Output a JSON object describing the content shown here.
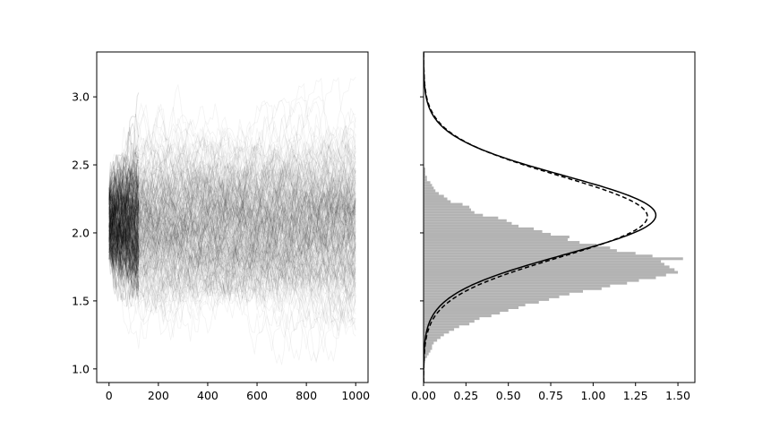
{
  "chart_data": [
    {
      "type": "line",
      "description_of_marks": "many semi-transparent sample paths spreading from x=0",
      "series_color": "#000000",
      "xlim": [
        -50,
        1050
      ],
      "ylim": [
        0.9,
        3.33
      ],
      "xticks": [
        0,
        200,
        400,
        600,
        800,
        1000
      ],
      "xtick_labels": [
        "0",
        "200",
        "400",
        "600",
        "800",
        "1000"
      ],
      "yticks": [
        1.0,
        1.5,
        2.0,
        2.5,
        3.0
      ],
      "ytick_labels": [
        "1.0",
        "1.5",
        "2.0",
        "2.5",
        "3.0"
      ],
      "paths": {
        "x_max": 1000,
        "stationary_mean": 2.05,
        "stationary_sd": 0.3,
        "start_range": [
          1.85,
          2.3
        ]
      }
    },
    {
      "type": "histogram",
      "orientation": "horizontal",
      "bar_color": "#b3b3b3",
      "xlim": [
        0.0,
        1.6
      ],
      "ylim": [
        0.9,
        3.33
      ],
      "xticks": [
        0.0,
        0.25,
        0.5,
        0.75,
        1.0,
        1.25,
        1.5
      ],
      "xtick_labels": [
        "0.00",
        "0.25",
        "0.50",
        "0.75",
        "1.00",
        "1.25",
        "1.50"
      ],
      "yticks": [
        1.0,
        1.5,
        2.0,
        2.5,
        3.0
      ],
      "bins": {
        "start": 1.0,
        "width": 0.02,
        "densities": [
          0.0,
          0.0,
          0.01,
          0.01,
          0.02,
          0.03,
          0.04,
          0.05,
          0.05,
          0.06,
          0.08,
          0.1,
          0.12,
          0.15,
          0.18,
          0.21,
          0.27,
          0.3,
          0.33,
          0.4,
          0.45,
          0.5,
          0.56,
          0.6,
          0.68,
          0.74,
          0.8,
          0.86,
          0.94,
          1.05,
          1.1,
          1.2,
          1.27,
          1.37,
          1.43,
          1.5,
          1.48,
          1.45,
          1.42,
          1.4,
          1.53,
          1.35,
          1.25,
          1.14,
          1.1,
          1.02,
          0.92,
          0.85,
          0.86,
          0.75,
          0.7,
          0.65,
          0.56,
          0.52,
          0.49,
          0.44,
          0.35,
          0.3,
          0.28,
          0.27,
          0.23,
          0.16,
          0.14,
          0.12,
          0.09,
          0.07,
          0.06,
          0.05,
          0.04,
          0.02,
          0.02,
          0.01,
          0.01,
          0.01,
          0.0,
          0.0,
          0.0,
          0.0,
          0.0,
          0.0,
          0.0,
          0.0,
          0.0,
          0.0,
          0.0,
          0.0,
          0.0,
          0.0,
          0.0,
          0.0,
          0.0,
          0.0,
          0.0,
          0.0,
          0.0,
          0.0,
          0.0,
          0.0,
          0.0,
          0.0,
          0.0,
          0.0,
          0.0,
          0.0,
          0.0
        ]
      },
      "density_curves": [
        {
          "style": "solid",
          "mean": 2.13,
          "sd": 0.29,
          "peak": 1.37
        },
        {
          "style": "dashed",
          "mean": 2.12,
          "sd": 0.3,
          "peak": 1.32
        }
      ]
    }
  ]
}
